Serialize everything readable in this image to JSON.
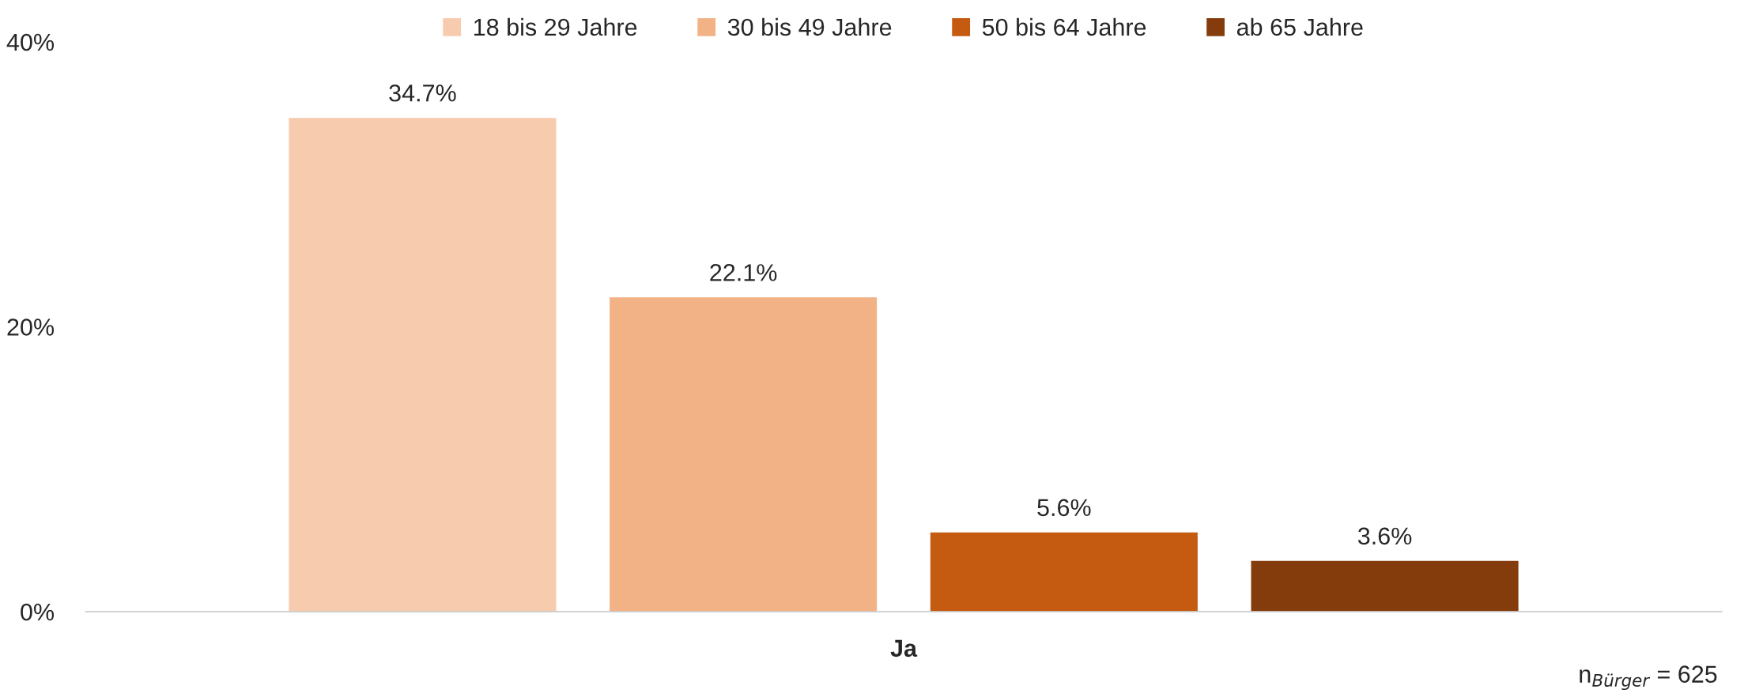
{
  "chart_data": {
    "type": "bar",
    "categories": [
      "Ja"
    ],
    "series": [
      {
        "name": "18 bis 29 Jahre",
        "color": "#f7cbad",
        "values": [
          34.7
        ],
        "value_labels": [
          "34.7%"
        ]
      },
      {
        "name": "30 bis 49 Jahre",
        "color": "#f3b286",
        "values": [
          22.1
        ],
        "value_labels": [
          "22.1%"
        ]
      },
      {
        "name": "50 bis 64 Jahre",
        "color": "#c55a11",
        "values": [
          5.6
        ],
        "value_labels": [
          "5.6%"
        ]
      },
      {
        "name": "ab 65 Jahre",
        "color": "#843c0c",
        "values": [
          3.6
        ],
        "value_labels": [
          "3.6%"
        ]
      }
    ],
    "ylim": [
      0,
      40
    ],
    "yticks": [
      {
        "value": 0,
        "label": "0%"
      },
      {
        "value": 20,
        "label": "20%"
      },
      {
        "value": 40,
        "label": "40%"
      }
    ],
    "grid": false,
    "legend": "top",
    "annotations": [
      "n$_{Bürger}$ = 625"
    ]
  }
}
